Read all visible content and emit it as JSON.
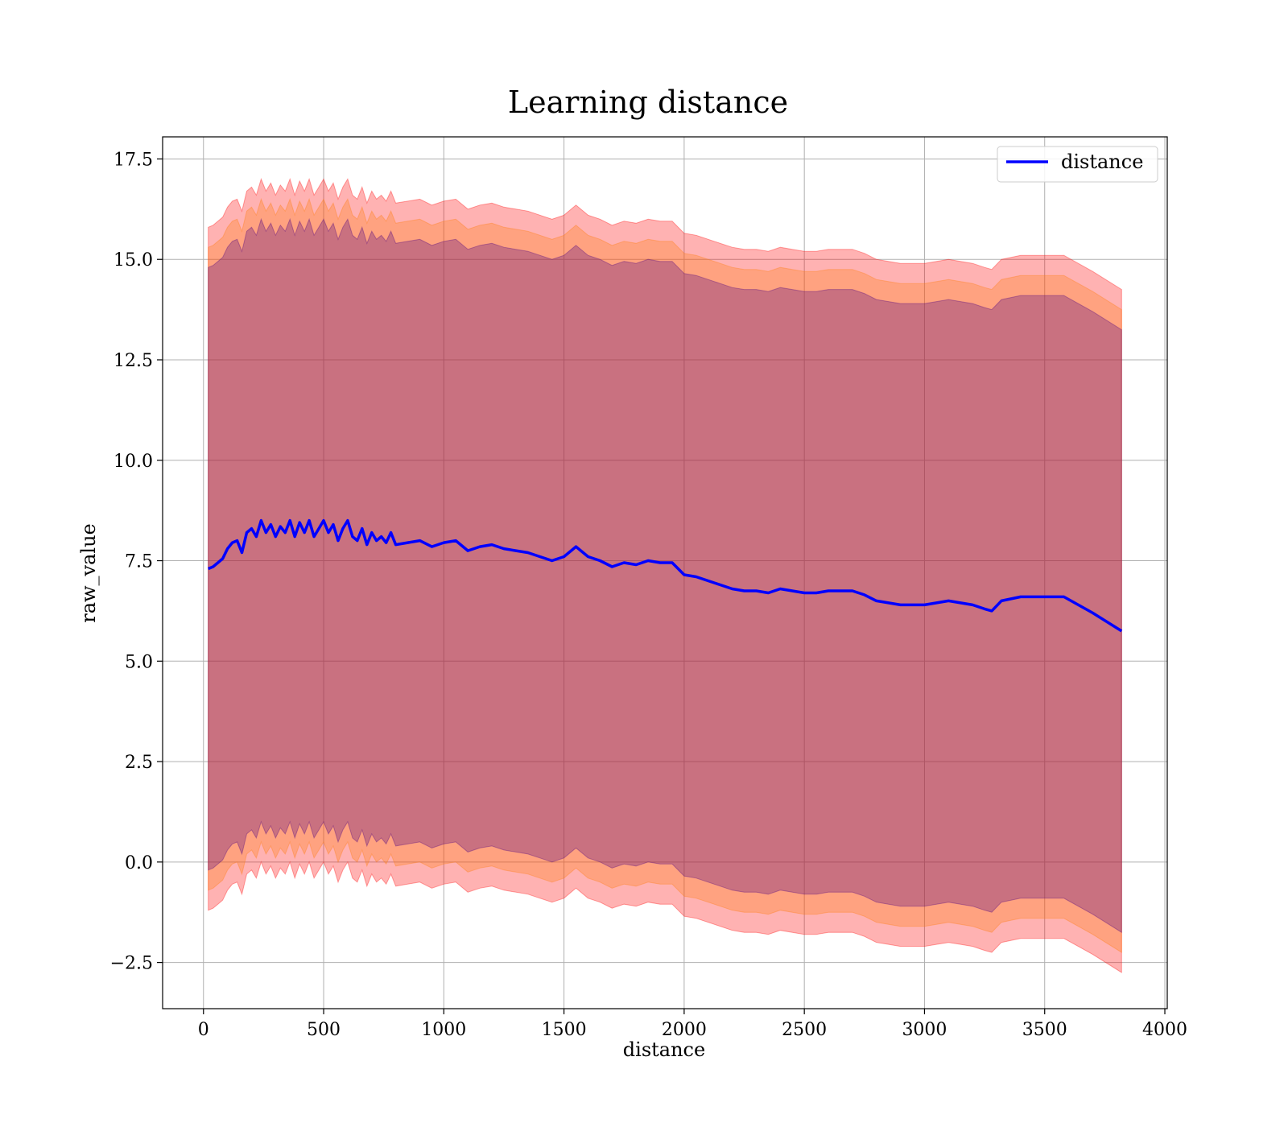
{
  "chart_data": {
    "type": "line",
    "title": "Learning distance",
    "xlabel": "distance",
    "ylabel": "raw_value",
    "xlim": [
      -170,
      4010
    ],
    "ylim": [
      -3.65,
      18.05
    ],
    "xticks": [
      0,
      500,
      1000,
      1500,
      2000,
      2500,
      3000,
      3500,
      4000
    ],
    "xtick_labels": [
      "0",
      "500",
      "1000",
      "1500",
      "2000",
      "2500",
      "3000",
      "3500",
      "4000"
    ],
    "yticks": [
      -2.5,
      0.0,
      2.5,
      5.0,
      7.5,
      10.0,
      12.5,
      15.0,
      17.5
    ],
    "ytick_labels": [
      "−2.5",
      "0.0",
      "2.5",
      "5.0",
      "7.5",
      "10.0",
      "12.5",
      "15.0",
      "17.5"
    ],
    "grid": true,
    "legend_position": "upper right",
    "series": [
      {
        "name": "distance",
        "color": "#0000ff",
        "x": [
          20,
          40,
          60,
          80,
          100,
          120,
          140,
          160,
          180,
          200,
          220,
          240,
          260,
          280,
          300,
          320,
          340,
          360,
          380,
          400,
          420,
          440,
          460,
          480,
          500,
          520,
          540,
          560,
          580,
          600,
          620,
          640,
          660,
          680,
          700,
          720,
          740,
          760,
          780,
          800,
          850,
          900,
          950,
          1000,
          1050,
          1100,
          1150,
          1200,
          1250,
          1300,
          1350,
          1400,
          1450,
          1500,
          1550,
          1600,
          1650,
          1700,
          1750,
          1800,
          1850,
          1900,
          1950,
          2000,
          2050,
          2100,
          2150,
          2200,
          2250,
          2300,
          2350,
          2400,
          2450,
          2500,
          2550,
          2600,
          2650,
          2700,
          2750,
          2800,
          2850,
          2900,
          2950,
          3000,
          3050,
          3100,
          3150,
          3200,
          3250,
          3280,
          3320,
          3400,
          3500,
          3580,
          3700,
          3820
        ],
        "y": [
          7.3,
          7.35,
          7.45,
          7.55,
          7.8,
          7.95,
          8.0,
          7.7,
          8.2,
          8.3,
          8.1,
          8.5,
          8.2,
          8.4,
          8.1,
          8.35,
          8.2,
          8.5,
          8.1,
          8.45,
          8.2,
          8.5,
          8.1,
          8.3,
          8.5,
          8.2,
          8.4,
          8.0,
          8.3,
          8.5,
          8.1,
          8.0,
          8.3,
          7.9,
          8.2,
          8.0,
          8.1,
          7.95,
          8.2,
          7.9,
          7.95,
          8.0,
          7.85,
          7.95,
          8.0,
          7.75,
          7.85,
          7.9,
          7.8,
          7.75,
          7.7,
          7.6,
          7.5,
          7.6,
          7.85,
          7.6,
          7.5,
          7.35,
          7.45,
          7.4,
          7.5,
          7.45,
          7.45,
          7.15,
          7.1,
          7.0,
          6.9,
          6.8,
          6.75,
          6.75,
          6.7,
          6.8,
          6.75,
          6.7,
          6.7,
          6.75,
          6.75,
          6.75,
          6.65,
          6.5,
          6.45,
          6.4,
          6.4,
          6.4,
          6.45,
          6.5,
          6.45,
          6.4,
          6.3,
          6.25,
          6.5,
          6.6,
          6.6,
          6.6,
          6.2,
          5.75
        ]
      }
    ],
    "bands": [
      {
        "color": "#ff0000",
        "alpha": 0.3,
        "half_width": 8.5
      },
      {
        "color": "#ff7f0e",
        "alpha": 0.3,
        "half_width": 8.0
      },
      {
        "color": "#4b0082",
        "alpha": 0.3,
        "half_width": 7.5
      }
    ],
    "legend": [
      {
        "label": "distance",
        "color": "#0000ff"
      }
    ]
  }
}
